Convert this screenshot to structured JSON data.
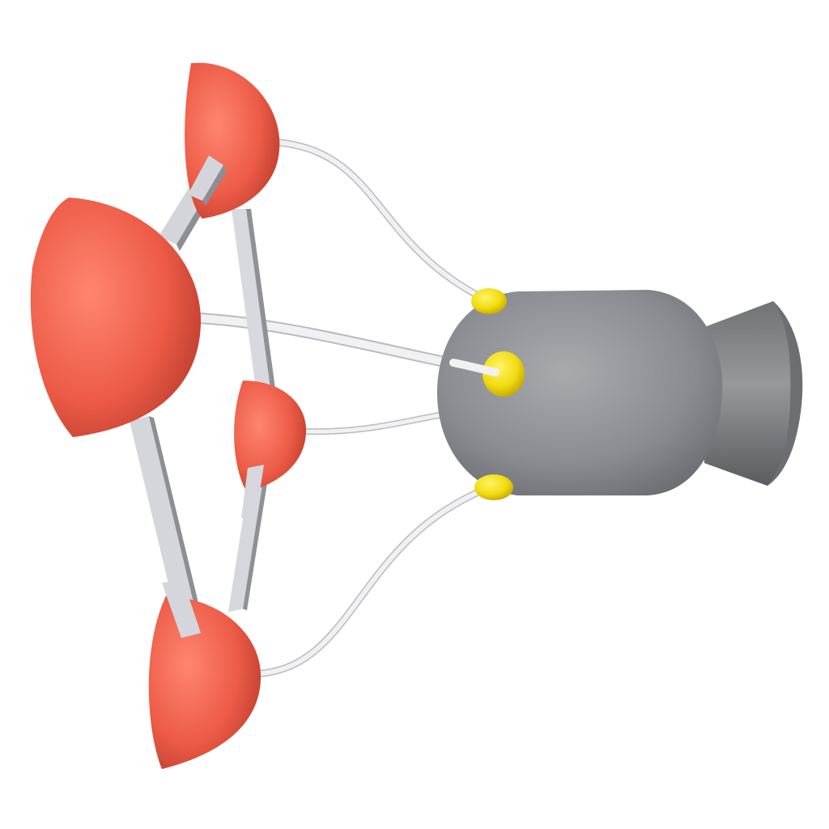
{
  "scene": {
    "background": "#ffffff",
    "description_colors": {
      "float": "#f0634f",
      "float_highlight": "#ff8a72",
      "float_shadow": "#b8362a",
      "rod": "#d4d6dc",
      "rod_shadow": "#8a8c92",
      "cable": "#e8e8ec",
      "capsule": "#8e9096",
      "capsule_highlight": "#b4b6bb",
      "capsule_shadow": "#5c5e63",
      "connector": "#f5e020",
      "connector_shadow": "#c9b400"
    }
  }
}
